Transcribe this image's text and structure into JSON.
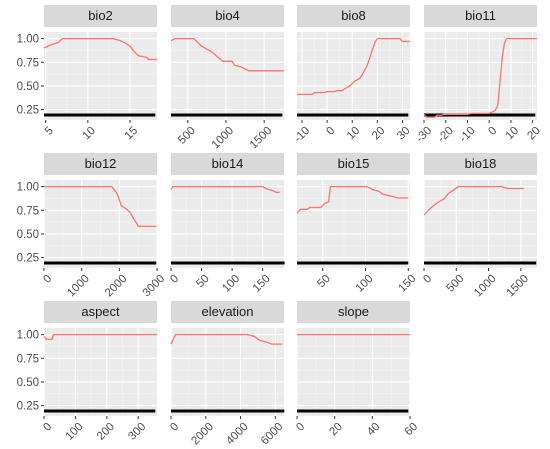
{
  "chart_data": {
    "type": "line",
    "line_color": "#f8766d",
    "panel_bg": "#ebebeb",
    "strip_bg": "#d9d9d9",
    "y_ticks": [
      0.25,
      0.5,
      0.75,
      1.0
    ],
    "y_tick_labels": [
      "0.25",
      "0.50",
      "0.75",
      "1.00"
    ],
    "ylim": [
      0.14,
      1.07
    ],
    "panels": [
      {
        "title": "bio2",
        "xlim": [
          4.8,
          18.2
        ],
        "x_ticks": [
          5,
          10,
          15
        ],
        "x_tick_labels": [
          "5",
          "10",
          "15"
        ],
        "points": [
          [
            4.8,
            0.9
          ],
          [
            5.5,
            0.93
          ],
          [
            6.5,
            0.96
          ],
          [
            7.0,
            1.0
          ],
          [
            13.0,
            1.0
          ],
          [
            13.8,
            0.98
          ],
          [
            14.5,
            0.95
          ],
          [
            15.0,
            0.92
          ],
          [
            15.5,
            0.86
          ],
          [
            16.0,
            0.82
          ],
          [
            17.0,
            0.8
          ],
          [
            17.2,
            0.78
          ],
          [
            18.2,
            0.78
          ]
        ],
        "rug_dots": []
      },
      {
        "title": "bio4",
        "xlim": [
          280,
          1760
        ],
        "x_ticks": [
          500,
          1000,
          1500
        ],
        "x_tick_labels": [
          "500",
          "1000",
          "1500"
        ],
        "points": [
          [
            280,
            0.98
          ],
          [
            330,
            1.0
          ],
          [
            580,
            1.0
          ],
          [
            680,
            0.92
          ],
          [
            770,
            0.88
          ],
          [
            830,
            0.85
          ],
          [
            900,
            0.8
          ],
          [
            960,
            0.76
          ],
          [
            1080,
            0.76
          ],
          [
            1110,
            0.72
          ],
          [
            1200,
            0.7
          ],
          [
            1300,
            0.66
          ],
          [
            1760,
            0.66
          ]
        ],
        "rug_dots": []
      },
      {
        "title": "bio8",
        "xlim": [
          -12,
          33
        ],
        "x_ticks": [
          -10,
          0,
          10,
          20,
          30
        ],
        "x_tick_labels": [
          "-10",
          "0",
          "10",
          "20",
          "30"
        ],
        "points": [
          [
            -12,
            0.41
          ],
          [
            -6,
            0.41
          ],
          [
            -5,
            0.43
          ],
          [
            -1,
            0.43
          ],
          [
            0,
            0.44
          ],
          [
            3,
            0.44
          ],
          [
            4,
            0.45
          ],
          [
            6,
            0.45
          ],
          [
            7,
            0.47
          ],
          [
            9,
            0.5
          ],
          [
            11,
            0.55
          ],
          [
            13,
            0.58
          ],
          [
            14,
            0.62
          ],
          [
            16,
            0.72
          ],
          [
            17,
            0.8
          ],
          [
            18,
            0.88
          ],
          [
            19,
            0.96
          ],
          [
            20,
            1.0
          ],
          [
            29,
            1.0
          ],
          [
            30,
            0.97
          ],
          [
            33,
            0.97
          ]
        ],
        "rug_dots": [
          -10.5,
          -9.3,
          -7.8,
          -6.2,
          -4.5,
          -2.5
        ]
      },
      {
        "title": "bio11",
        "xlim": [
          -30,
          22
        ],
        "x_ticks": [
          -30,
          -20,
          -10,
          0,
          10,
          20
        ],
        "x_tick_labels": [
          "-30",
          "-20",
          "-10",
          "0",
          "10",
          "20"
        ],
        "points": [
          [
            -30,
            0.2
          ],
          [
            -29,
            0.17
          ],
          [
            -25,
            0.17
          ],
          [
            -24,
            0.19
          ],
          [
            -22,
            0.19
          ],
          [
            -21,
            0.2
          ],
          [
            -19,
            0.2
          ],
          [
            -10,
            0.2
          ],
          [
            -8,
            0.21
          ],
          [
            0,
            0.21
          ],
          [
            2,
            0.23
          ],
          [
            3,
            0.25
          ],
          [
            4,
            0.3
          ],
          [
            5,
            0.55
          ],
          [
            6,
            0.8
          ],
          [
            7,
            0.95
          ],
          [
            8,
            1.0
          ],
          [
            22,
            1.0
          ]
        ],
        "rug_dots": []
      },
      {
        "title": "bio12",
        "xlim": [
          0,
          3000
        ],
        "x_ticks": [
          0,
          1000,
          2000,
          3000
        ],
        "x_tick_labels": [
          "0",
          "1000",
          "2000",
          "3000"
        ],
        "points": [
          [
            0,
            1.0
          ],
          [
            1800,
            1.0
          ],
          [
            1880,
            0.96
          ],
          [
            1950,
            0.92
          ],
          [
            2050,
            0.8
          ],
          [
            2200,
            0.76
          ],
          [
            2300,
            0.72
          ],
          [
            2380,
            0.66
          ],
          [
            2480,
            0.6
          ],
          [
            2500,
            0.58
          ],
          [
            2990,
            0.58
          ]
        ],
        "rug_dots": [
          2600,
          2700,
          2800,
          2880,
          2950
        ]
      },
      {
        "title": "bio14",
        "xlim": [
          0,
          185
        ],
        "x_ticks": [
          0,
          50,
          100,
          150
        ],
        "x_tick_labels": [
          "0",
          "50",
          "100",
          "150"
        ],
        "points": [
          [
            0,
            0.97
          ],
          [
            3,
            1.0
          ],
          [
            150,
            1.0
          ],
          [
            155,
            0.98
          ],
          [
            165,
            0.96
          ],
          [
            172,
            0.94
          ],
          [
            178,
            0.94
          ]
        ],
        "rug_dots": [
          55,
          62,
          70,
          184
        ]
      },
      {
        "title": "bio15",
        "xlim": [
          20,
          152
        ],
        "x_ticks": [
          50,
          100,
          150
        ],
        "x_tick_labels": [
          "50",
          "100",
          "150"
        ],
        "points": [
          [
            20,
            0.72
          ],
          [
            24,
            0.76
          ],
          [
            32,
            0.76
          ],
          [
            35,
            0.78
          ],
          [
            48,
            0.78
          ],
          [
            52,
            0.82
          ],
          [
            57,
            0.84
          ],
          [
            59,
            1.0
          ],
          [
            102,
            1.0
          ],
          [
            108,
            0.97
          ],
          [
            116,
            0.95
          ],
          [
            120,
            0.92
          ],
          [
            130,
            0.9
          ],
          [
            138,
            0.88
          ],
          [
            150,
            0.88
          ]
        ],
        "rug_dots": []
      },
      {
        "title": "bio18",
        "xlim": [
          0,
          1750
        ],
        "x_ticks": [
          0,
          500,
          1000,
          1500
        ],
        "x_tick_labels": [
          "0",
          "500",
          "1000",
          "1500"
        ],
        "points": [
          [
            0,
            0.7
          ],
          [
            80,
            0.76
          ],
          [
            150,
            0.8
          ],
          [
            230,
            0.84
          ],
          [
            310,
            0.87
          ],
          [
            380,
            0.93
          ],
          [
            450,
            0.96
          ],
          [
            530,
            1.0
          ],
          [
            1210,
            1.0
          ],
          [
            1240,
            0.99
          ],
          [
            1310,
            0.98
          ],
          [
            1550,
            0.98
          ]
        ],
        "rug_dots": [
          1440,
          1580,
          1720
        ]
      },
      {
        "title": "aspect",
        "xlim": [
          0,
          360
        ],
        "x_ticks": [
          0,
          100,
          200,
          300
        ],
        "x_tick_labels": [
          "0",
          "100",
          "200",
          "300"
        ],
        "points": [
          [
            0,
            0.98
          ],
          [
            8,
            0.95
          ],
          [
            15,
            0.95
          ],
          [
            25,
            0.95
          ],
          [
            30,
            1.0
          ],
          [
            360,
            1.0
          ]
        ],
        "rug_dots": []
      },
      {
        "title": "elevation",
        "xlim": [
          0,
          6500
        ],
        "x_ticks": [
          0,
          2000,
          4000,
          6000
        ],
        "x_tick_labels": [
          "0",
          "2000",
          "4000",
          "6000"
        ],
        "points": [
          [
            0,
            0.9
          ],
          [
            250,
            1.0
          ],
          [
            4400,
            1.0
          ],
          [
            4800,
            0.98
          ],
          [
            5100,
            0.94
          ],
          [
            5500,
            0.92
          ],
          [
            5800,
            0.9
          ],
          [
            6400,
            0.9
          ]
        ],
        "rug_dots": [
          6200,
          6450
        ]
      },
      {
        "title": "slope",
        "xlim": [
          0,
          60
        ],
        "x_ticks": [
          0,
          20,
          40,
          60
        ],
        "x_tick_labels": [
          "0",
          "20",
          "40",
          "60"
        ],
        "points": [
          [
            0,
            1.0
          ],
          [
            60,
            1.0
          ]
        ],
        "rug_dots": [
          40,
          42,
          44,
          47,
          52,
          57
        ]
      }
    ]
  }
}
